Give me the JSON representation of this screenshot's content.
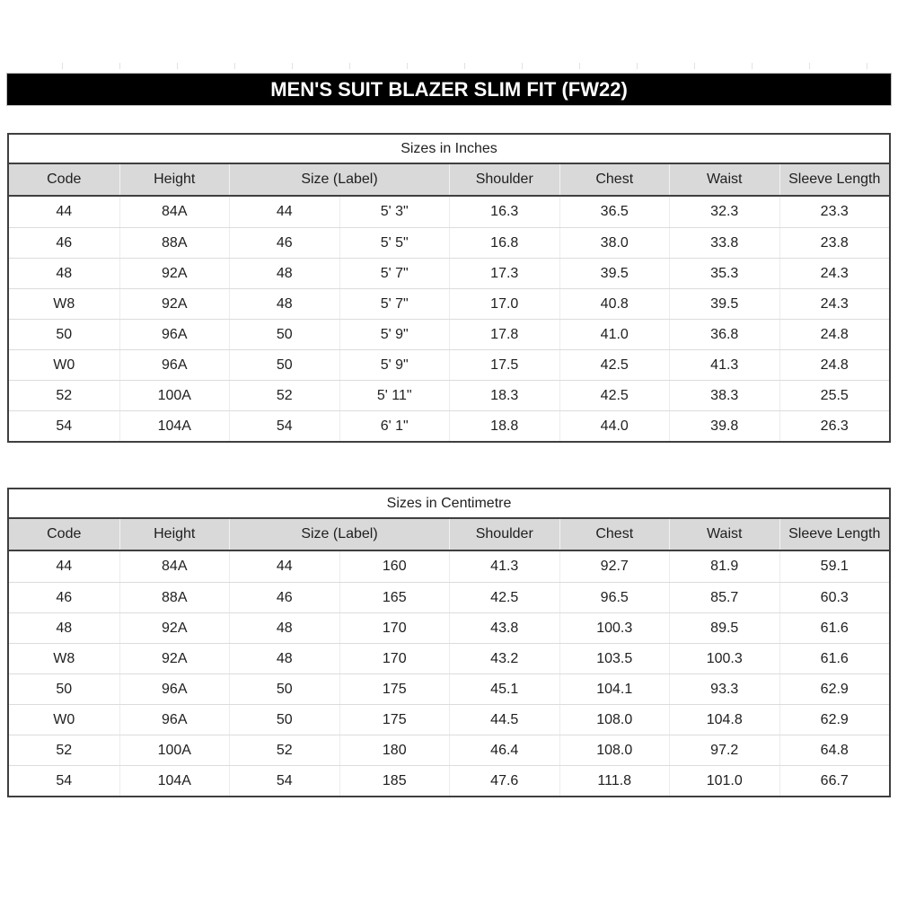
{
  "colors": {
    "title_bar_bg": "#000000",
    "title_bar_text": "#ffffff",
    "header_row_bg": "#d9d9d9",
    "border_dark": "#3f3f3f",
    "row_separator": "#dcdcdc",
    "text": "#1f1f1f"
  },
  "title_bar": {
    "label": "MEN'S SUIT BLAZER SLIM FIT (FW22)"
  },
  "tables": [
    {
      "title": "Sizes in Inches",
      "columns": [
        {
          "label": "Code",
          "span": 1
        },
        {
          "label": "Height",
          "span": 1
        },
        {
          "label": "Size (Label)",
          "span": 2
        },
        {
          "label": "Shoulder",
          "span": 1
        },
        {
          "label": "Chest",
          "span": 1
        },
        {
          "label": "Waist",
          "span": 1
        },
        {
          "label": "Sleeve Length",
          "span": 1
        }
      ],
      "rows": [
        [
          "44",
          "84A",
          "44",
          "5' 3\"",
          "16.3",
          "36.5",
          "32.3",
          "23.3"
        ],
        [
          "46",
          "88A",
          "46",
          "5' 5\"",
          "16.8",
          "38.0",
          "33.8",
          "23.8"
        ],
        [
          "48",
          "92A",
          "48",
          "5' 7\"",
          "17.3",
          "39.5",
          "35.3",
          "24.3"
        ],
        [
          "W8",
          "92A",
          "48",
          "5' 7\"",
          "17.0",
          "40.8",
          "39.5",
          "24.3"
        ],
        [
          "50",
          "96A",
          "50",
          "5' 9\"",
          "17.8",
          "41.0",
          "36.8",
          "24.8"
        ],
        [
          "W0",
          "96A",
          "50",
          "5' 9\"",
          "17.5",
          "42.5",
          "41.3",
          "24.8"
        ],
        [
          "52",
          "100A",
          "52",
          "5' 11\"",
          "18.3",
          "42.5",
          "38.3",
          "25.5"
        ],
        [
          "54",
          "104A",
          "54",
          "6' 1\"",
          "18.8",
          "44.0",
          "39.8",
          "26.3"
        ]
      ]
    },
    {
      "title": "Sizes in Centimetre",
      "columns": [
        {
          "label": "Code",
          "span": 1
        },
        {
          "label": "Height",
          "span": 1
        },
        {
          "label": "Size (Label)",
          "span": 2
        },
        {
          "label": "Shoulder",
          "span": 1
        },
        {
          "label": "Chest",
          "span": 1
        },
        {
          "label": "Waist",
          "span": 1
        },
        {
          "label": "Sleeve Length",
          "span": 1
        }
      ],
      "rows": [
        [
          "44",
          "84A",
          "44",
          "160",
          "41.3",
          "92.7",
          "81.9",
          "59.1"
        ],
        [
          "46",
          "88A",
          "46",
          "165",
          "42.5",
          "96.5",
          "85.7",
          "60.3"
        ],
        [
          "48",
          "92A",
          "48",
          "170",
          "43.8",
          "100.3",
          "89.5",
          "61.6"
        ],
        [
          "W8",
          "92A",
          "48",
          "170",
          "43.2",
          "103.5",
          "100.3",
          "61.6"
        ],
        [
          "50",
          "96A",
          "50",
          "175",
          "45.1",
          "104.1",
          "93.3",
          "62.9"
        ],
        [
          "W0",
          "96A",
          "50",
          "175",
          "44.5",
          "108.0",
          "104.8",
          "62.9"
        ],
        [
          "52",
          "100A",
          "52",
          "180",
          "46.4",
          "108.0",
          "97.2",
          "64.8"
        ],
        [
          "54",
          "104A",
          "54",
          "185",
          "47.6",
          "111.8",
          "101.0",
          "66.7"
        ]
      ]
    }
  ]
}
